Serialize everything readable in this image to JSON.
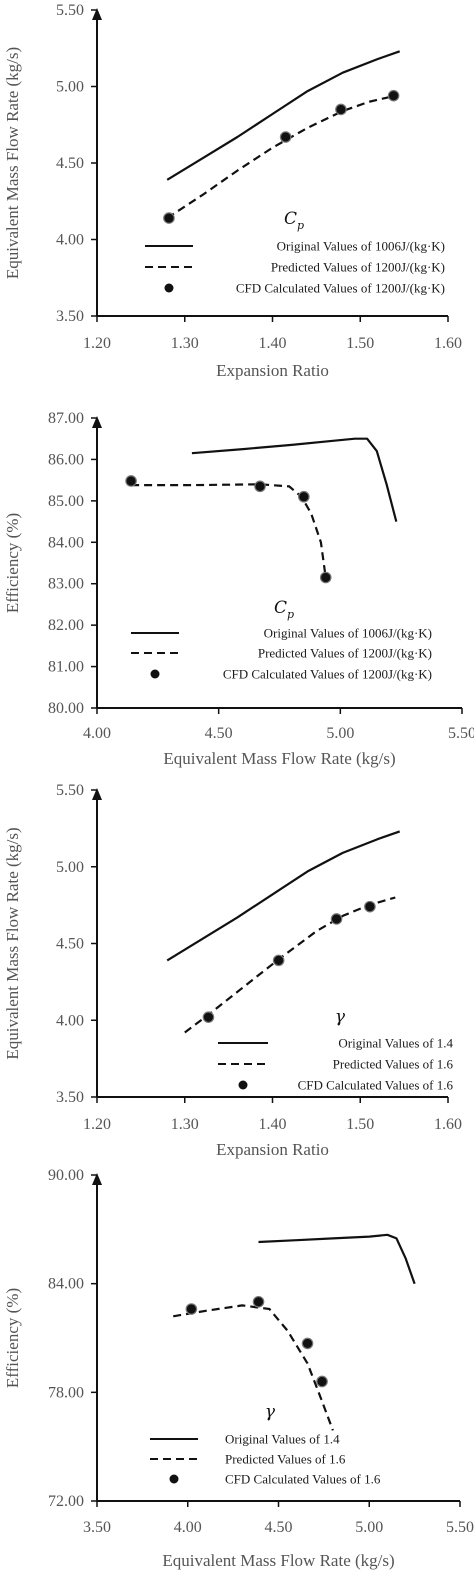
{
  "chart_data": [
    {
      "type": "line",
      "legend_title": "C",
      "legend_title_sub": "p",
      "xlabel": "Expansion Ratio",
      "ylabel": "Equivalent Mass Flow Rate (kg/s)",
      "xlim": [
        1.2,
        1.6
      ],
      "ylim": [
        3.5,
        5.5
      ],
      "xticks": [
        "1.20",
        "1.30",
        "1.40",
        "1.50",
        "1.60"
      ],
      "yticks": [
        "3.50",
        "4.00",
        "4.50",
        "5.00",
        "5.50"
      ],
      "legend_position": "lower-right",
      "series": [
        {
          "name": "Original Values of 1006J/(kg·K)",
          "style": "solid",
          "x": [
            1.28,
            1.32,
            1.36,
            1.4,
            1.44,
            1.48,
            1.52,
            1.545
          ],
          "y": [
            4.39,
            4.53,
            4.67,
            4.82,
            4.97,
            5.09,
            5.18,
            5.23
          ]
        },
        {
          "name": "Predicted Values of 1200J/(kg·K)",
          "style": "dashed",
          "x": [
            1.28,
            1.32,
            1.36,
            1.4,
            1.44,
            1.48,
            1.51,
            1.54
          ],
          "y": [
            4.14,
            4.29,
            4.45,
            4.6,
            4.73,
            4.84,
            4.9,
            4.94
          ]
        },
        {
          "name": "CFD Calculated Values of 1200J/(kg·K)",
          "style": "points",
          "x": [
            1.282,
            1.415,
            1.478,
            1.538
          ],
          "y": [
            4.14,
            4.67,
            4.85,
            4.94
          ]
        }
      ]
    },
    {
      "type": "line",
      "legend_title": "C",
      "legend_title_sub": "p",
      "xlabel": "Equivalent Mass Flow Rate (kg/s)",
      "ylabel": "Efficiency (%)",
      "xlim": [
        4.0,
        5.5
      ],
      "ylim": [
        80.0,
        87.0
      ],
      "xticks": [
        "4.00",
        "4.50",
        "5.00",
        "5.50"
      ],
      "yticks": [
        "80.00",
        "81.00",
        "82.00",
        "83.00",
        "84.00",
        "85.00",
        "86.00",
        "87.00"
      ],
      "legend_position": "lower-right",
      "series": [
        {
          "name": "Original Values of 1006J/(kg·K)",
          "style": "solid",
          "x": [
            4.39,
            4.6,
            4.8,
            4.97,
            5.06,
            5.11,
            5.15,
            5.19,
            5.23
          ],
          "y": [
            86.15,
            86.25,
            86.35,
            86.45,
            86.5,
            86.5,
            86.2,
            85.4,
            84.5
          ]
        },
        {
          "name": "Predicted Values of 1200J/(kg·K)",
          "style": "dashed",
          "x": [
            4.14,
            4.4,
            4.67,
            4.79,
            4.84,
            4.88,
            4.92,
            4.94
          ],
          "y": [
            85.38,
            85.38,
            85.4,
            85.35,
            85.1,
            84.7,
            84.0,
            83.15
          ]
        },
        {
          "name": "CFD Calculated Values of 1200J/(kg·K)",
          "style": "points",
          "x": [
            4.14,
            4.67,
            4.85,
            4.94
          ],
          "y": [
            85.48,
            85.35,
            85.1,
            83.15
          ]
        }
      ]
    },
    {
      "type": "line",
      "legend_title": "γ",
      "legend_title_sub": "",
      "xlabel": "Expansion Ratio",
      "ylabel": "Equivalent Mass Flow Rate (kg/s)",
      "xlim": [
        1.2,
        1.6
      ],
      "ylim": [
        3.5,
        5.5
      ],
      "xticks": [
        "1.20",
        "1.30",
        "1.40",
        "1.50",
        "1.60"
      ],
      "yticks": [
        "3.50",
        "4.00",
        "4.50",
        "5.00",
        "5.50"
      ],
      "legend_position": "lower-right",
      "series": [
        {
          "name": "Original Values of 1.4",
          "style": "solid",
          "x": [
            1.28,
            1.32,
            1.36,
            1.4,
            1.44,
            1.48,
            1.52,
            1.545
          ],
          "y": [
            4.39,
            4.53,
            4.67,
            4.82,
            4.97,
            5.09,
            5.18,
            5.23
          ]
        },
        {
          "name": "Predicted Values of 1.6",
          "style": "dashed",
          "x": [
            1.3,
            1.33,
            1.37,
            1.41,
            1.45,
            1.48,
            1.51,
            1.54
          ],
          "y": [
            3.92,
            4.05,
            4.23,
            4.41,
            4.58,
            4.68,
            4.75,
            4.8
          ]
        },
        {
          "name": "CFD Calculated Values of 1.6",
          "style": "points",
          "x": [
            1.327,
            1.407,
            1.473,
            1.511
          ],
          "y": [
            4.02,
            4.39,
            4.66,
            4.74
          ]
        }
      ]
    },
    {
      "type": "line",
      "legend_title": "γ",
      "legend_title_sub": "",
      "xlabel": "Equivalent Mass Flow Rate (kg/s)",
      "ylabel": "Efficiency (%)",
      "xlim": [
        3.5,
        5.5
      ],
      "ylim": [
        72.0,
        90.0
      ],
      "xticks": [
        "3.50",
        "4.00",
        "4.50",
        "5.00",
        "5.50"
      ],
      "yticks": [
        "72.00",
        "78.00",
        "84.00",
        "90.00"
      ],
      "legend_position": "lower-left",
      "series": [
        {
          "name": "Original Values of 1.4",
          "style": "solid",
          "x": [
            4.39,
            4.6,
            4.8,
            5.0,
            5.1,
            5.15,
            5.2,
            5.25
          ],
          "y": [
            86.3,
            86.4,
            86.5,
            86.6,
            86.7,
            86.5,
            85.4,
            84.0
          ]
        },
        {
          "name": "Predicted Values of 1.6",
          "style": "dashed",
          "x": [
            3.92,
            4.1,
            4.3,
            4.45,
            4.55,
            4.66,
            4.74,
            4.8
          ],
          "y": [
            82.2,
            82.5,
            82.8,
            82.6,
            81.4,
            79.6,
            77.5,
            75.9
          ]
        },
        {
          "name": "CFD Calculated Values of 1.6",
          "style": "points",
          "x": [
            4.02,
            4.39,
            4.66,
            4.74
          ],
          "y": [
            82.6,
            83.0,
            80.7,
            78.6
          ]
        }
      ]
    }
  ]
}
